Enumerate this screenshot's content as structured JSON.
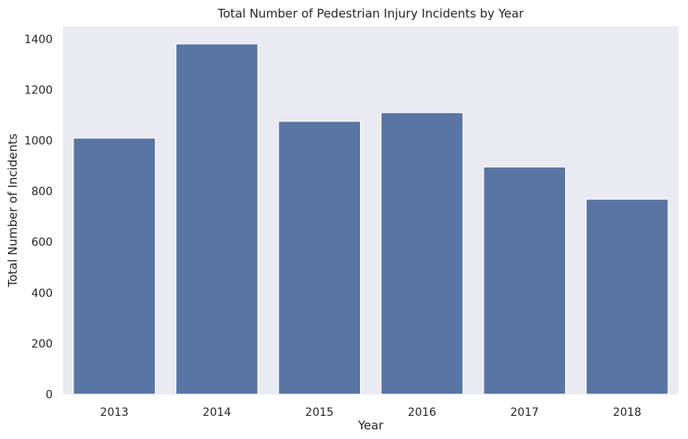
{
  "chart_data": {
    "type": "bar",
    "title": "Total Number of Pedestrian Injury Incidents by Year",
    "xlabel": "Year",
    "ylabel": "Total Number of Incidents",
    "categories": [
      "2013",
      "2014",
      "2015",
      "2016",
      "2017",
      "2018"
    ],
    "values": [
      1010,
      1381,
      1076,
      1110,
      896,
      769
    ],
    "ylim": [
      0,
      1450
    ],
    "yticks": [
      0,
      200,
      400,
      600,
      800,
      1000,
      1200,
      1400
    ],
    "grid": false,
    "colors": {
      "bar": "#5875a4",
      "plot_background": "#eaeaf2",
      "bar_edge": "#ffffff",
      "text": "#262626"
    }
  }
}
